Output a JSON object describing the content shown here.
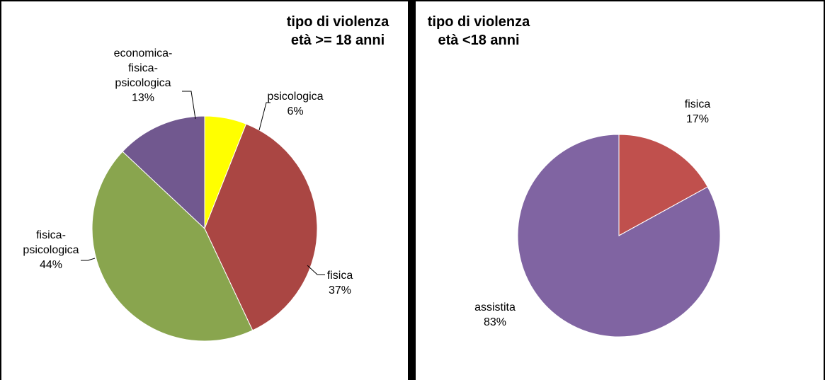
{
  "chart_data": [
    {
      "type": "pie",
      "title_lines": [
        "tipo di violenza",
        "età >= 18 anni"
      ],
      "slices": [
        {
          "label_lines": [
            "psicologica"
          ],
          "value": 6,
          "pct_label": "6%",
          "color": "#FFFF00"
        },
        {
          "label_lines": [
            "fisica"
          ],
          "value": 37,
          "pct_label": "37%",
          "color": "#AA4643"
        },
        {
          "label_lines": [
            "fisica-",
            "psicologica"
          ],
          "value": 44,
          "pct_label": "44%",
          "color": "#89A54E"
        },
        {
          "label_lines": [
            "economica-",
            "fisica-",
            "psicologica"
          ],
          "value": 13,
          "pct_label": "13%",
          "color": "#71588F"
        }
      ]
    },
    {
      "type": "pie",
      "title_lines": [
        "tipo di violenza",
        "età <18 anni"
      ],
      "slices": [
        {
          "label_lines": [
            "fisica"
          ],
          "value": 17,
          "pct_label": "17%",
          "color": "#C0504D"
        },
        {
          "label_lines": [
            "assistita"
          ],
          "value": 83,
          "pct_label": "83%",
          "color": "#8064A2"
        }
      ]
    }
  ]
}
